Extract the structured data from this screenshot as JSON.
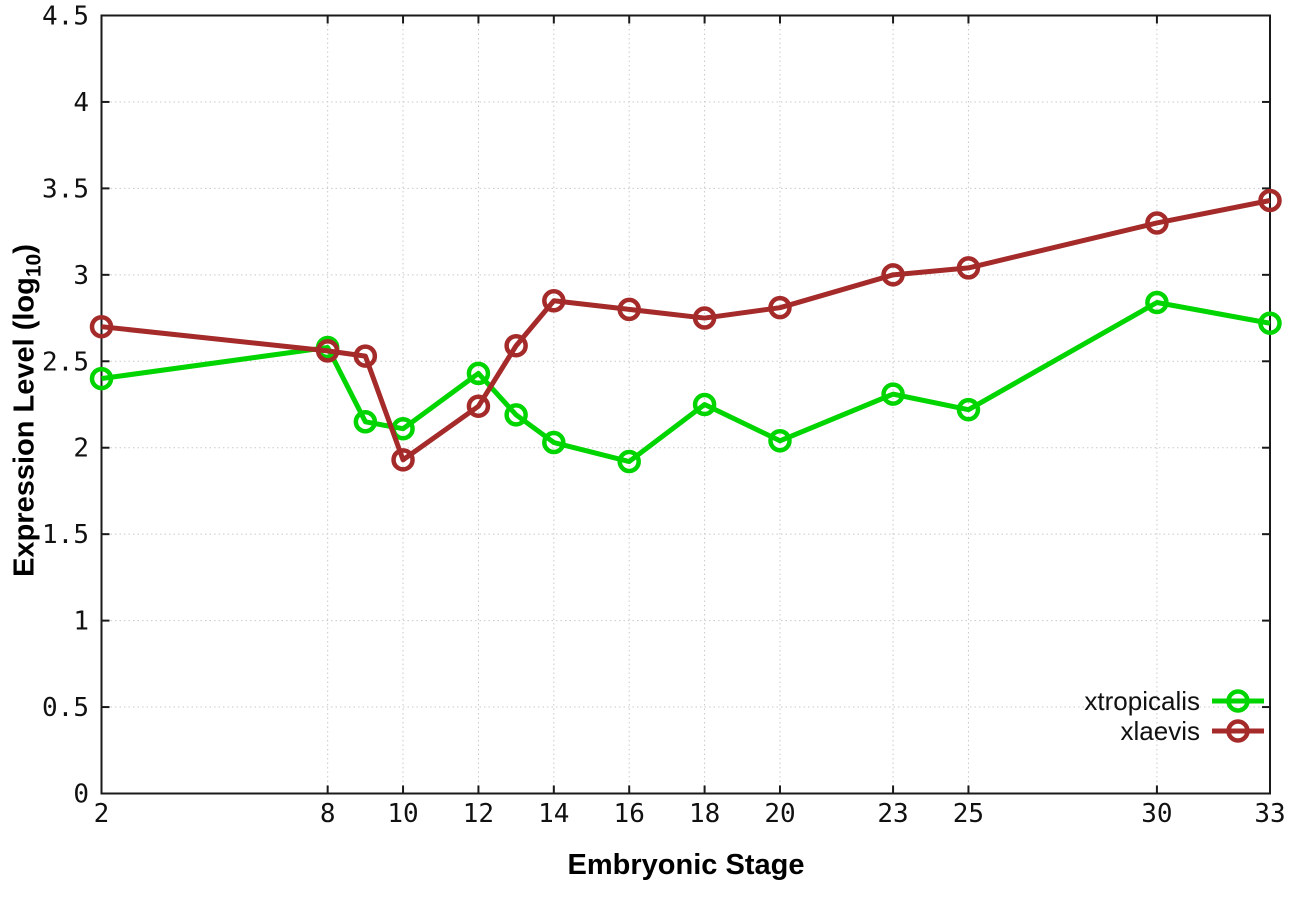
{
  "chart_data": {
    "type": "line",
    "title": "",
    "xlabel": "Embryonic Stage",
    "ylabel": {
      "pre": "Expression Level (log",
      "sub": "10",
      "post": ")"
    },
    "x": [
      2,
      8,
      9,
      10,
      12,
      13,
      14,
      16,
      18,
      20,
      23,
      25,
      30,
      33
    ],
    "series": [
      {
        "name": "xtropicalis",
        "color": "#00d500",
        "values": [
          2.4,
          2.58,
          2.15,
          2.11,
          2.43,
          2.19,
          2.03,
          1.92,
          2.25,
          2.04,
          2.31,
          2.22,
          2.84,
          2.72
        ]
      },
      {
        "name": "xlaevis",
        "color": "#a52a2a",
        "values": [
          2.7,
          2.56,
          2.53,
          1.93,
          2.24,
          2.59,
          2.85,
          2.8,
          2.75,
          2.81,
          3.0,
          3.04,
          3.3,
          3.43
        ]
      }
    ],
    "xlim": [
      2,
      33
    ],
    "ylim": [
      0,
      4.5
    ],
    "x_ticks": [
      2,
      8,
      10,
      12,
      14,
      16,
      18,
      20,
      23,
      25,
      30,
      33
    ],
    "x_tick_labels": [
      "2",
      "8",
      "10",
      "12",
      "14",
      "16",
      "18",
      "20",
      "23",
      "25",
      "30",
      "33"
    ],
    "y_ticks": [
      0,
      0.5,
      1,
      1.5,
      2,
      2.5,
      3,
      3.5,
      4,
      4.5
    ],
    "y_tick_labels": [
      "0",
      "0.5",
      "1",
      "1.5",
      "2",
      "2.5",
      "3",
      "3.5",
      "4",
      "4.5"
    ],
    "grid": true,
    "legend_position": "bottom-right"
  },
  "colors": {
    "background": "#ffffff",
    "grid": "#c9c9c9",
    "axis": "#1a1a1a",
    "xtropicalis": "#00d500",
    "xlaevis": "#a52a2a"
  }
}
